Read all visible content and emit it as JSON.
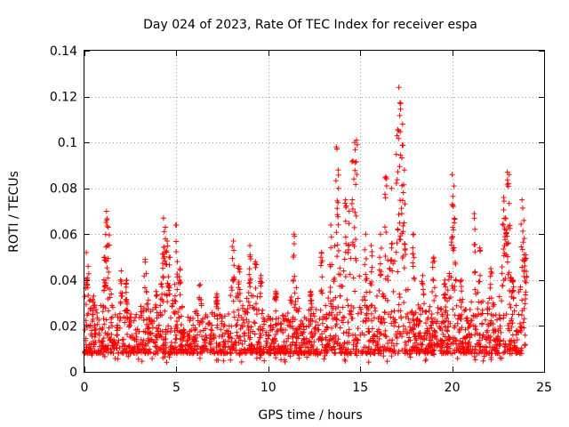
{
  "chart_data": {
    "type": "scatter",
    "title": "Day 024 of 2023, Rate Of TEC Index for receiver espa",
    "xlabel": "GPS time / hours",
    "ylabel": "ROTI / TECUs",
    "xlim": [
      0,
      25
    ],
    "ylim": [
      0,
      0.14
    ],
    "xticks": [
      0,
      5,
      10,
      15,
      20,
      25
    ],
    "xtick_labels": [
      "0",
      "5",
      "10",
      "15",
      "20",
      "25"
    ],
    "yticks": [
      0,
      0.02,
      0.04,
      0.06,
      0.08,
      0.1,
      0.12,
      0.14
    ],
    "ytick_labels": [
      "0",
      "0.02",
      "0.04",
      "0.06",
      "0.08",
      "0.1",
      "0.12",
      "0.14"
    ],
    "grid": true,
    "marker": "+",
    "series": [
      {
        "name": "ROTI",
        "color": "#ff0000",
        "baseline_band": [
          0.008,
          0.025
        ],
        "peaks": [
          {
            "x": 0.1,
            "y": 0.052
          },
          {
            "x": 0.2,
            "y": 0.046
          },
          {
            "x": 0.5,
            "y": 0.033
          },
          {
            "x": 1.2,
            "y": 0.07
          },
          {
            "x": 1.3,
            "y": 0.063
          },
          {
            "x": 1.1,
            "y": 0.05
          },
          {
            "x": 2.0,
            "y": 0.044
          },
          {
            "x": 2.3,
            "y": 0.04
          },
          {
            "x": 3.3,
            "y": 0.049
          },
          {
            "x": 3.9,
            "y": 0.035
          },
          {
            "x": 4.3,
            "y": 0.067
          },
          {
            "x": 4.4,
            "y": 0.063
          },
          {
            "x": 4.5,
            "y": 0.057
          },
          {
            "x": 4.6,
            "y": 0.05
          },
          {
            "x": 5.0,
            "y": 0.064
          },
          {
            "x": 5.2,
            "y": 0.045
          },
          {
            "x": 6.3,
            "y": 0.038
          },
          {
            "x": 7.2,
            "y": 0.034
          },
          {
            "x": 8.1,
            "y": 0.057
          },
          {
            "x": 8.4,
            "y": 0.046
          },
          {
            "x": 9.0,
            "y": 0.055
          },
          {
            "x": 9.3,
            "y": 0.048
          },
          {
            "x": 9.6,
            "y": 0.042
          },
          {
            "x": 10.4,
            "y": 0.035
          },
          {
            "x": 11.4,
            "y": 0.06
          },
          {
            "x": 12.3,
            "y": 0.035
          },
          {
            "x": 12.9,
            "y": 0.052
          },
          {
            "x": 13.4,
            "y": 0.064
          },
          {
            "x": 13.7,
            "y": 0.098
          },
          {
            "x": 13.8,
            "y": 0.088
          },
          {
            "x": 14.2,
            "y": 0.075
          },
          {
            "x": 14.4,
            "y": 0.07
          },
          {
            "x": 14.6,
            "y": 0.092
          },
          {
            "x": 14.7,
            "y": 0.1
          },
          {
            "x": 14.8,
            "y": 0.101
          },
          {
            "x": 15.3,
            "y": 0.06
          },
          {
            "x": 15.6,
            "y": 0.055
          },
          {
            "x": 16.1,
            "y": 0.06
          },
          {
            "x": 16.4,
            "y": 0.085
          },
          {
            "x": 16.7,
            "y": 0.08
          },
          {
            "x": 17.0,
            "y": 0.103
          },
          {
            "x": 17.1,
            "y": 0.124
          },
          {
            "x": 17.2,
            "y": 0.117
          },
          {
            "x": 17.3,
            "y": 0.108
          },
          {
            "x": 17.4,
            "y": 0.088
          },
          {
            "x": 17.9,
            "y": 0.06
          },
          {
            "x": 18.4,
            "y": 0.042
          },
          {
            "x": 19.0,
            "y": 0.05
          },
          {
            "x": 19.6,
            "y": 0.04
          },
          {
            "x": 20.0,
            "y": 0.086
          },
          {
            "x": 20.1,
            "y": 0.081
          },
          {
            "x": 20.5,
            "y": 0.04
          },
          {
            "x": 21.2,
            "y": 0.069
          },
          {
            "x": 21.5,
            "y": 0.054
          },
          {
            "x": 22.1,
            "y": 0.045
          },
          {
            "x": 22.8,
            "y": 0.076
          },
          {
            "x": 22.9,
            "y": 0.067
          },
          {
            "x": 23.0,
            "y": 0.087
          },
          {
            "x": 23.1,
            "y": 0.086
          },
          {
            "x": 23.3,
            "y": 0.04
          },
          {
            "x": 23.8,
            "y": 0.075
          },
          {
            "x": 23.9,
            "y": 0.066
          },
          {
            "x": 24.0,
            "y": 0.051
          }
        ]
      }
    ]
  }
}
